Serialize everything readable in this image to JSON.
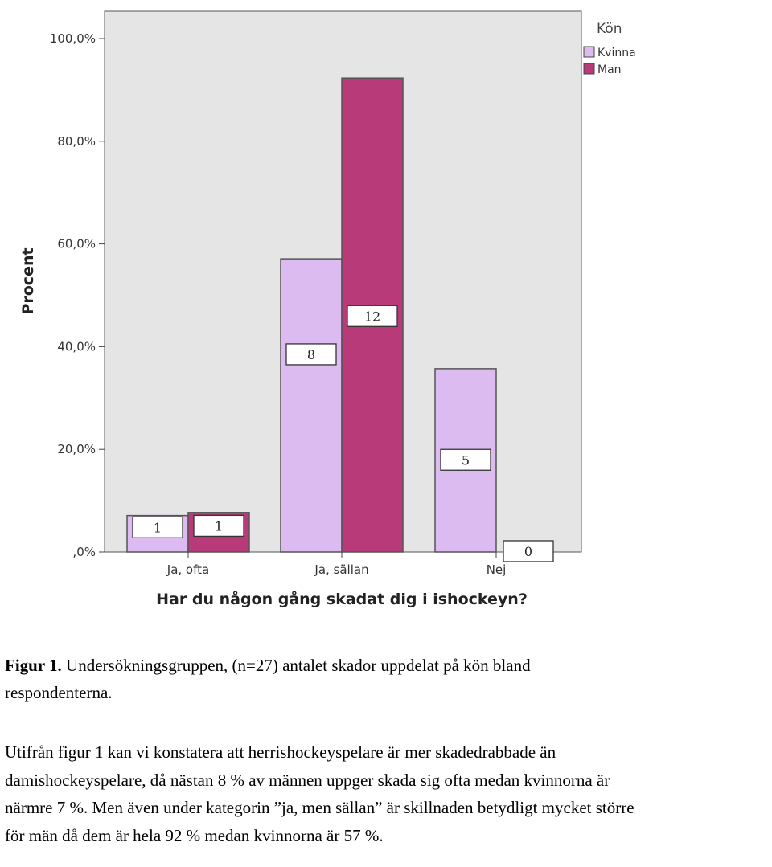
{
  "chart_data": {
    "type": "bar",
    "xlabel": "Har du någon gång skadat dig i ishockeyn?",
    "ylabel": "Procent",
    "ylim": [
      0,
      100
    ],
    "y_ticks": [
      ",0%",
      "20,0%",
      "40,0%",
      "60,0%",
      "80,0%",
      "100,0%"
    ],
    "y_tick_values": [
      0,
      20,
      40,
      60,
      80,
      100
    ],
    "categories": [
      "Ja, ofta",
      "Ja, sällan",
      "Nej"
    ],
    "legend": {
      "title": "Kön",
      "position": "top-right"
    },
    "grid": false,
    "series": [
      {
        "name": "Kvinna",
        "color": "#dcbbf0",
        "values": [
          7.1,
          57.1,
          35.7
        ],
        "counts": [
          "1",
          "8",
          "5"
        ]
      },
      {
        "name": "Man",
        "color": "#b83a78",
        "values": [
          7.7,
          92.3,
          0.0
        ],
        "counts": [
          "1",
          "12",
          "0"
        ]
      }
    ],
    "plot_background": "#e5e5e5"
  },
  "caption": {
    "label": "Figur 1.",
    "text": " Undersökningsgruppen, (n=27) antalet skador uppdelat på kön bland",
    "text2": "respondenterna."
  },
  "body": {
    "lines": [
      "Utifrån figur 1 kan vi konstatera att herrishockeyspelare är mer skadedrabbade än",
      "damishockeyspelare, då nästan 8 % av männen uppger skada sig ofta medan kvinnorna är",
      "närmre 7 %. Men även under kategorin ”ja, men sällan” är skillnaden betydligt mycket större",
      "för män då dem är hela 92 % medan kvinnorna är 57 %."
    ]
  }
}
